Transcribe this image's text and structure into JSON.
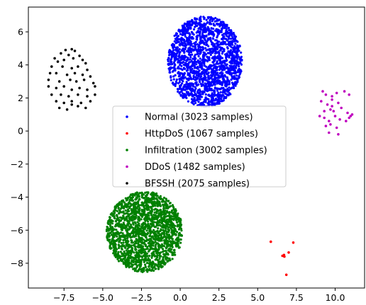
{
  "chart_data": {
    "type": "scatter",
    "title": "",
    "xlabel": "",
    "ylabel": "",
    "xlim": [
      -9.8,
      11.9
    ],
    "ylim": [
      -9.5,
      7.5
    ],
    "xticks": [
      -7.5,
      -5.0,
      -2.5,
      0.0,
      2.5,
      5.0,
      7.5,
      10.0
    ],
    "xtick_labels": [
      "−7.5",
      "−5.0",
      "−2.5",
      "0.0",
      "2.5",
      "5.0",
      "7.5",
      "10.0"
    ],
    "yticks": [
      -8,
      -6,
      -4,
      -2,
      0,
      2,
      4,
      6
    ],
    "ytick_labels": [
      "−8",
      "−6",
      "−4",
      "−2",
      "0",
      "2",
      "4",
      "6"
    ],
    "grid": false,
    "legend_position": "center",
    "series": [
      {
        "name": "Normal (3023 samples)",
        "color": "#0000ff",
        "cluster": {
          "center": [
            1.6,
            4.2
          ],
          "radius": [
            2.4,
            2.75
          ],
          "points": 3023,
          "shape": "filled-disk"
        }
      },
      {
        "name": "HttpDoS (1067 samples)",
        "color": "#ff0000",
        "points": [
          [
            5.85,
            -6.7
          ],
          [
            6.6,
            -7.55
          ],
          [
            6.7,
            -7.5
          ],
          [
            6.72,
            -7.6
          ],
          [
            7.0,
            -7.35
          ],
          [
            7.3,
            -6.75
          ],
          [
            6.85,
            -8.7
          ]
        ]
      },
      {
        "name": "Infiltration (3002 samples)",
        "color": "#008000",
        "cluster": {
          "center": [
            -2.3,
            -6.1
          ],
          "radius": [
            2.45,
            2.45
          ],
          "points": 3002,
          "shape": "filled-disk"
        }
      },
      {
        "name": "DDoS (1482 samples)",
        "color": "#bf00bf",
        "points": [
          [
            9.2,
            2.4
          ],
          [
            9.4,
            2.2
          ],
          [
            9.8,
            2.1
          ],
          [
            10.1,
            2.3
          ],
          [
            10.6,
            2.4
          ],
          [
            10.9,
            2.2
          ],
          [
            9.1,
            1.8
          ],
          [
            9.5,
            1.6
          ],
          [
            9.8,
            1.5
          ],
          [
            10.2,
            1.7
          ],
          [
            9.3,
            1.2
          ],
          [
            9.7,
            1.3
          ],
          [
            9.9,
            1.2
          ],
          [
            10.4,
            1.4
          ],
          [
            10.8,
            1.1
          ],
          [
            11.1,
            1.0
          ],
          [
            9.0,
            0.9
          ],
          [
            9.3,
            0.8
          ],
          [
            9.6,
            0.6
          ],
          [
            10.0,
            0.9
          ],
          [
            10.3,
            0.7
          ],
          [
            10.7,
            0.6
          ],
          [
            9.4,
            0.3
          ],
          [
            9.7,
            0.4
          ],
          [
            10.1,
            0.2
          ],
          [
            10.9,
            0.8
          ],
          [
            9.6,
            -0.1
          ],
          [
            10.2,
            -0.2
          ],
          [
            11.0,
            0.9
          ],
          [
            9.8,
            1.9
          ]
        ]
      },
      {
        "name": "BFSSH (2075 samples)",
        "color": "#000000",
        "points": [
          [
            -7.4,
            4.9
          ],
          [
            -7.0,
            4.95
          ],
          [
            -6.8,
            4.85
          ],
          [
            -7.7,
            4.7
          ],
          [
            -7.2,
            4.6
          ],
          [
            -6.5,
            4.55
          ],
          [
            -8.1,
            4.4
          ],
          [
            -7.9,
            4.2
          ],
          [
            -7.5,
            4.3
          ],
          [
            -6.9,
            4.4
          ],
          [
            -6.3,
            4.3
          ],
          [
            -6.1,
            4.1
          ],
          [
            -8.3,
            3.9
          ],
          [
            -7.6,
            3.9
          ],
          [
            -7.0,
            3.8
          ],
          [
            -6.6,
            3.9
          ],
          [
            -6.0,
            3.7
          ],
          [
            -8.4,
            3.5
          ],
          [
            -8.0,
            3.5
          ],
          [
            -7.3,
            3.4
          ],
          [
            -6.8,
            3.5
          ],
          [
            -6.3,
            3.4
          ],
          [
            -5.8,
            3.3
          ],
          [
            -8.5,
            3.1
          ],
          [
            -7.8,
            3.0
          ],
          [
            -7.1,
            3.1
          ],
          [
            -6.7,
            3.0
          ],
          [
            -6.2,
            3.1
          ],
          [
            -5.6,
            2.9
          ],
          [
            -8.5,
            2.7
          ],
          [
            -8.0,
            2.6
          ],
          [
            -7.5,
            2.7
          ],
          [
            -7.0,
            2.5
          ],
          [
            -6.5,
            2.6
          ],
          [
            -6.0,
            2.5
          ],
          [
            -5.5,
            2.7
          ],
          [
            -8.3,
            2.2
          ],
          [
            -7.7,
            2.2
          ],
          [
            -7.2,
            2.1
          ],
          [
            -6.6,
            2.2
          ],
          [
            -6.0,
            2.1
          ],
          [
            -5.5,
            2.2
          ],
          [
            -8.0,
            1.8
          ],
          [
            -7.5,
            1.7
          ],
          [
            -7.0,
            1.8
          ],
          [
            -6.4,
            1.7
          ],
          [
            -5.8,
            1.8
          ],
          [
            -7.8,
            1.4
          ],
          [
            -7.3,
            1.3
          ],
          [
            -6.6,
            1.5
          ],
          [
            -6.1,
            1.4
          ],
          [
            -7.0,
            1.6
          ]
        ]
      }
    ]
  }
}
